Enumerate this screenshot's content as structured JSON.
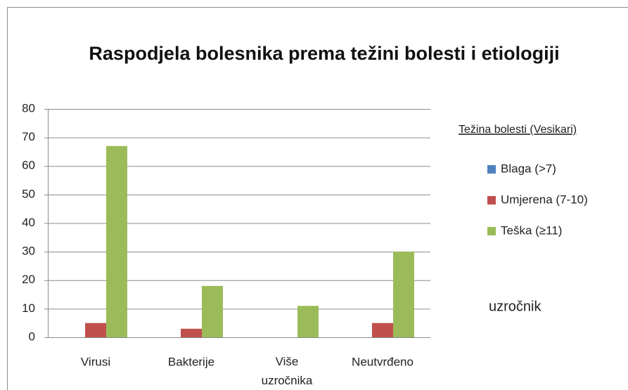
{
  "chart_data": {
    "type": "bar",
    "title": "Raspodjela bolesnika prema težini bolesti i etiologiji",
    "categories": [
      "Virusi",
      "Bakterije",
      "Više uzročnika",
      "Neutvrđeno"
    ],
    "series": [
      {
        "name": "Blaga (>7)",
        "color": "#4f81bd",
        "values": [
          0,
          0,
          0,
          0
        ]
      },
      {
        "name": "Umjerena (7-10)",
        "color": "#c0504d",
        "values": [
          5,
          3,
          0,
          5
        ]
      },
      {
        "name": "Teška (≥11)",
        "color": "#9bbb59",
        "values": [
          67,
          18,
          11,
          30
        ]
      }
    ],
    "legend_title": "Težina bolesti (Vesikari)",
    "annotation": "uzročnik",
    "ylim": [
      0,
      80
    ],
    "yticks": [
      0,
      10,
      20,
      30,
      40,
      50,
      60,
      70,
      80
    ],
    "grid": true,
    "legend": "right"
  }
}
